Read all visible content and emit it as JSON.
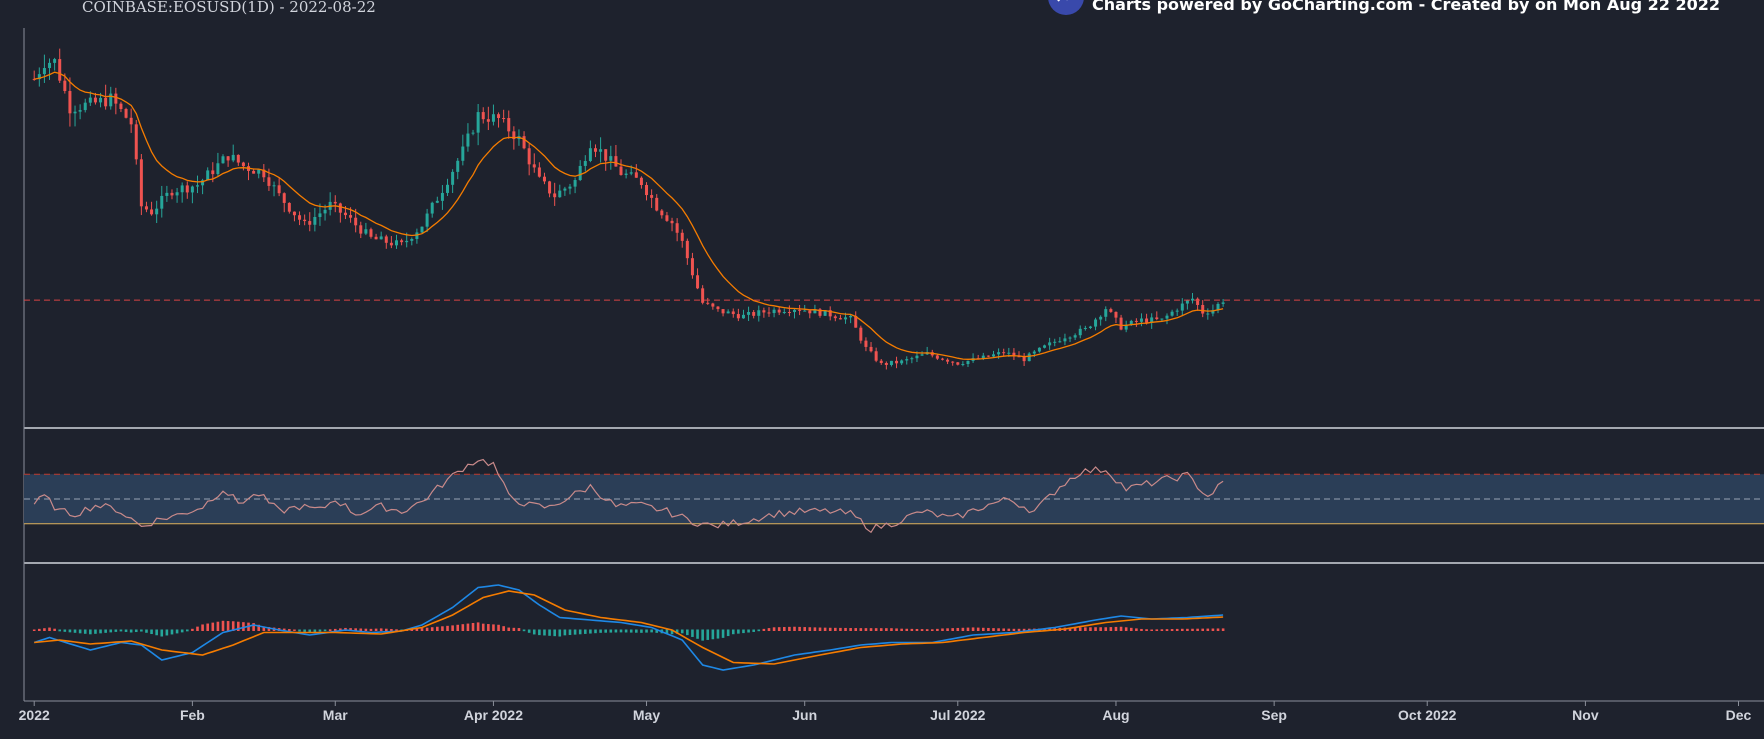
{
  "header": {
    "title": "COINBASE:EOSUSD(1D) - 2022-08-22",
    "credit": "Charts powered by GoCharting.com - Created by  on Mon Aug 22 2022",
    "logo_icon": "chart-line-icon"
  },
  "colors": {
    "background": "#1e222d",
    "up": "#26a69a",
    "down": "#ef5350",
    "ema": "#f57c00",
    "rsi_line": "#c98a8a",
    "rsi_band": "#2b3e57",
    "macd": "#1e88e5",
    "signal": "#f57c00",
    "price_line": "#d94444"
  },
  "chart_data": [
    {
      "type": "candlestick",
      "title": "COINBASE:EOSUSD(1D) - 2022-08-22",
      "x_range": [
        "2021-12-30",
        "2022-12-06"
      ],
      "x_ticks": [
        "2022",
        "Feb",
        "Mar",
        "Apr 2022",
        "May",
        "Jun",
        "Jul 2022",
        "Aug",
        "Sep",
        "Oct 2022",
        "Nov",
        "Dec"
      ],
      "ylim": [
        0.7,
        3.55
      ],
      "grid": false,
      "current_price": 1.52,
      "overlay": "EMA",
      "close_anchors": [
        [
          "2022-01-01",
          3.17
        ],
        [
          "2022-01-03",
          3.3
        ],
        [
          "2022-01-05",
          3.3
        ],
        [
          "2022-01-08",
          2.96
        ],
        [
          "2022-01-12",
          2.98
        ],
        [
          "2022-01-16",
          3.02
        ],
        [
          "2022-01-20",
          2.84
        ],
        [
          "2022-01-22",
          2.22
        ],
        [
          "2022-01-24",
          2.18
        ],
        [
          "2022-01-28",
          2.34
        ],
        [
          "2022-02-02",
          2.38
        ],
        [
          "2022-02-08",
          2.6
        ],
        [
          "2022-02-11",
          2.52
        ],
        [
          "2022-02-15",
          2.47
        ],
        [
          "2022-02-18",
          2.3
        ],
        [
          "2022-02-23",
          2.08
        ],
        [
          "2022-02-28",
          2.23
        ],
        [
          "2022-03-03",
          2.15
        ],
        [
          "2022-03-08",
          1.98
        ],
        [
          "2022-03-14",
          1.93
        ],
        [
          "2022-03-18",
          2.08
        ],
        [
          "2022-03-22",
          2.35
        ],
        [
          "2022-03-26",
          2.63
        ],
        [
          "2022-03-29",
          2.9
        ],
        [
          "2022-04-02",
          2.87
        ],
        [
          "2022-04-06",
          2.72
        ],
        [
          "2022-04-10",
          2.41
        ],
        [
          "2022-04-13",
          2.3
        ],
        [
          "2022-04-17",
          2.41
        ],
        [
          "2022-04-20",
          2.7
        ],
        [
          "2022-04-22",
          2.63
        ],
        [
          "2022-04-26",
          2.47
        ],
        [
          "2022-04-30",
          2.4
        ],
        [
          "2022-05-03",
          2.22
        ],
        [
          "2022-05-06",
          2.1
        ],
        [
          "2022-05-08",
          1.95
        ],
        [
          "2022-05-10",
          1.72
        ],
        [
          "2022-05-12",
          1.5
        ],
        [
          "2022-05-15",
          1.44
        ],
        [
          "2022-05-20",
          1.4
        ],
        [
          "2022-05-25",
          1.44
        ],
        [
          "2022-05-30",
          1.46
        ],
        [
          "2022-06-05",
          1.42
        ],
        [
          "2022-06-10",
          1.38
        ],
        [
          "2022-06-13",
          1.16
        ],
        [
          "2022-06-16",
          1.04
        ],
        [
          "2022-06-20",
          1.06
        ],
        [
          "2022-06-25",
          1.12
        ],
        [
          "2022-07-01",
          1.05
        ],
        [
          "2022-07-06",
          1.09
        ],
        [
          "2022-07-10",
          1.13
        ],
        [
          "2022-07-14",
          1.08
        ],
        [
          "2022-07-18",
          1.17
        ],
        [
          "2022-07-22",
          1.25
        ],
        [
          "2022-07-26",
          1.3
        ],
        [
          "2022-07-30",
          1.46
        ],
        [
          "2022-08-02",
          1.32
        ],
        [
          "2022-08-06",
          1.37
        ],
        [
          "2022-08-10",
          1.37
        ],
        [
          "2022-08-13",
          1.46
        ],
        [
          "2022-08-16",
          1.53
        ],
        [
          "2022-08-18",
          1.43
        ],
        [
          "2022-08-20",
          1.45
        ],
        [
          "2022-08-22",
          1.52
        ]
      ]
    },
    {
      "type": "line",
      "indicator": "RSI",
      "ylim": [
        0,
        100
      ],
      "band": [
        30,
        70
      ],
      "midline": 50,
      "x_range": [
        "2021-12-30",
        "2022-12-06"
      ],
      "values": [
        [
          "2022-01-01",
          46
        ],
        [
          "2022-01-03",
          52
        ],
        [
          "2022-01-06",
          40
        ],
        [
          "2022-01-09",
          38
        ],
        [
          "2022-01-13",
          45
        ],
        [
          "2022-01-17",
          42
        ],
        [
          "2022-01-20",
          34
        ],
        [
          "2022-01-22",
          28
        ],
        [
          "2022-01-25",
          33
        ],
        [
          "2022-01-30",
          38
        ],
        [
          "2022-02-03",
          44
        ],
        [
          "2022-02-07",
          58
        ],
        [
          "2022-02-10",
          47
        ],
        [
          "2022-02-14",
          54
        ],
        [
          "2022-02-18",
          40
        ],
        [
          "2022-02-22",
          44
        ],
        [
          "2022-02-26",
          41
        ],
        [
          "2022-03-01",
          50
        ],
        [
          "2022-03-05",
          38
        ],
        [
          "2022-03-10",
          44
        ],
        [
          "2022-03-14",
          40
        ],
        [
          "2022-03-18",
          48
        ],
        [
          "2022-03-22",
          62
        ],
        [
          "2022-03-26",
          75
        ],
        [
          "2022-03-29",
          82
        ],
        [
          "2022-04-01",
          78
        ],
        [
          "2022-04-04",
          52
        ],
        [
          "2022-04-08",
          45
        ],
        [
          "2022-04-12",
          43
        ],
        [
          "2022-04-16",
          52
        ],
        [
          "2022-04-20",
          60
        ],
        [
          "2022-04-25",
          44
        ],
        [
          "2022-04-30",
          45
        ],
        [
          "2022-05-05",
          40
        ],
        [
          "2022-05-10",
          32
        ],
        [
          "2022-05-14",
          28
        ],
        [
          "2022-05-20",
          32
        ],
        [
          "2022-05-26",
          38
        ],
        [
          "2022-06-01",
          40
        ],
        [
          "2022-06-06",
          40
        ],
        [
          "2022-06-10",
          38
        ],
        [
          "2022-06-14",
          26
        ],
        [
          "2022-06-18",
          30
        ],
        [
          "2022-06-24",
          40
        ],
        [
          "2022-06-30",
          34
        ],
        [
          "2022-07-06",
          44
        ],
        [
          "2022-07-11",
          50
        ],
        [
          "2022-07-16",
          40
        ],
        [
          "2022-07-21",
          60
        ],
        [
          "2022-07-25",
          72
        ],
        [
          "2022-07-30",
          74
        ],
        [
          "2022-08-03",
          58
        ],
        [
          "2022-08-07",
          62
        ],
        [
          "2022-08-11",
          66
        ],
        [
          "2022-08-15",
          69
        ],
        [
          "2022-08-19",
          52
        ],
        [
          "2022-08-22",
          63
        ]
      ]
    },
    {
      "type": "line",
      "indicator": "MACD",
      "ylim": [
        -0.12,
        0.12
      ],
      "x_range": [
        "2021-12-30",
        "2022-12-06"
      ],
      "series": [
        {
          "values": [
            [
              "2022-01-01",
              -0.025
            ],
            [
              "2022-01-04",
              -0.015
            ],
            [
              "2022-01-12",
              -0.04
            ],
            [
              "2022-01-18",
              -0.025
            ],
            [
              "2022-01-22",
              -0.03
            ],
            [
              "2022-01-26",
              -0.06
            ],
            [
              "2022-02-01",
              -0.045
            ],
            [
              "2022-02-07",
              -0.005
            ],
            [
              "2022-02-13",
              0.01
            ],
            [
              "2022-02-18",
              0.0
            ],
            [
              "2022-02-24",
              -0.01
            ],
            [
              "2022-03-03",
              0.0
            ],
            [
              "2022-03-08",
              -0.005
            ],
            [
              "2022-03-14",
              -0.002
            ],
            [
              "2022-03-18",
              0.01
            ],
            [
              "2022-03-24",
              0.045
            ],
            [
              "2022-03-29",
              0.085
            ],
            [
              "2022-04-02",
              0.09
            ],
            [
              "2022-04-06",
              0.08
            ],
            [
              "2022-04-10",
              0.05
            ],
            [
              "2022-04-14",
              0.025
            ],
            [
              "2022-04-20",
              0.02
            ],
            [
              "2022-04-26",
              0.015
            ],
            [
              "2022-05-02",
              0.005
            ],
            [
              "2022-05-08",
              -0.02
            ],
            [
              "2022-05-12",
              -0.07
            ],
            [
              "2022-05-16",
              -0.08
            ],
            [
              "2022-05-22",
              -0.07
            ],
            [
              "2022-05-30",
              -0.05
            ],
            [
              "2022-06-06",
              -0.04
            ],
            [
              "2022-06-12",
              -0.03
            ],
            [
              "2022-06-18",
              -0.025
            ],
            [
              "2022-06-26",
              -0.025
            ],
            [
              "2022-07-04",
              -0.01
            ],
            [
              "2022-07-12",
              -0.005
            ],
            [
              "2022-07-20",
              0.005
            ],
            [
              "2022-07-28",
              0.02
            ],
            [
              "2022-08-02",
              0.028
            ],
            [
              "2022-08-08",
              0.022
            ],
            [
              "2022-08-15",
              0.025
            ],
            [
              "2022-08-22",
              0.03
            ]
          ]
        },
        {
          "values": [
            [
              "2022-01-01",
              -0.025
            ],
            [
              "2022-01-06",
              -0.02
            ],
            [
              "2022-01-12",
              -0.028
            ],
            [
              "2022-01-20",
              -0.022
            ],
            [
              "2022-01-26",
              -0.04
            ],
            [
              "2022-02-03",
              -0.05
            ],
            [
              "2022-02-09",
              -0.03
            ],
            [
              "2022-02-15",
              -0.005
            ],
            [
              "2022-02-22",
              -0.005
            ],
            [
              "2022-03-01",
              -0.005
            ],
            [
              "2022-03-10",
              -0.008
            ],
            [
              "2022-03-18",
              0.005
            ],
            [
              "2022-03-24",
              0.03
            ],
            [
              "2022-03-30",
              0.065
            ],
            [
              "2022-04-04",
              0.078
            ],
            [
              "2022-04-09",
              0.07
            ],
            [
              "2022-04-15",
              0.04
            ],
            [
              "2022-04-22",
              0.025
            ],
            [
              "2022-04-30",
              0.015
            ],
            [
              "2022-05-06",
              0.0
            ],
            [
              "2022-05-12",
              -0.035
            ],
            [
              "2022-05-18",
              -0.065
            ],
            [
              "2022-05-26",
              -0.068
            ],
            [
              "2022-06-04",
              -0.05
            ],
            [
              "2022-06-12",
              -0.035
            ],
            [
              "2022-06-20",
              -0.028
            ],
            [
              "2022-06-28",
              -0.025
            ],
            [
              "2022-07-06",
              -0.015
            ],
            [
              "2022-07-14",
              -0.005
            ],
            [
              "2022-07-22",
              0.002
            ],
            [
              "2022-07-30",
              0.015
            ],
            [
              "2022-08-06",
              0.022
            ],
            [
              "2022-08-14",
              0.022
            ],
            [
              "2022-08-22",
              0.026
            ]
          ]
        }
      ],
      "bars": true
    }
  ]
}
